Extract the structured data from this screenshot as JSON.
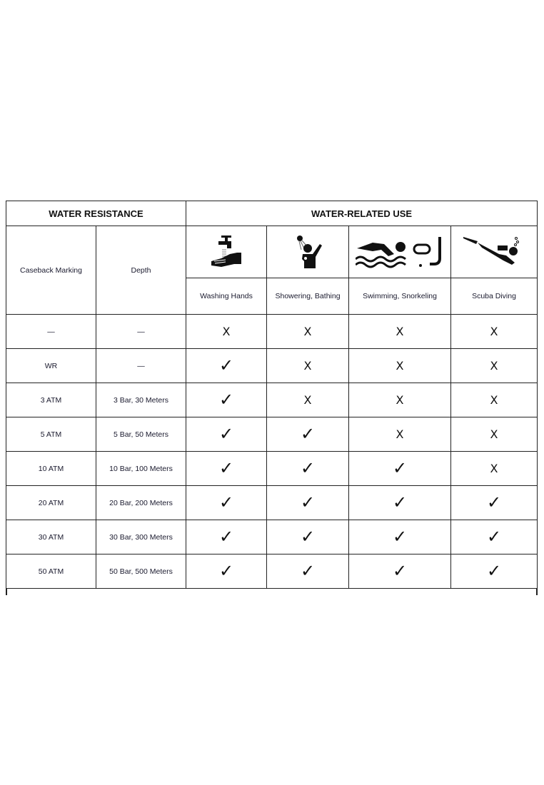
{
  "header": {
    "water_resistance": "WATER RESISTANCE",
    "water_related_use": "WATER-RELATED USE"
  },
  "columns": {
    "marking": "Caseback Marking",
    "depth": "Depth"
  },
  "uses": [
    {
      "label": "Washing Hands",
      "icon": "washing-hands-icon"
    },
    {
      "label": "Showering, Bathing",
      "icon": "shower-icon"
    },
    {
      "label": "Swimming, Snorkeling",
      "icon": "swimming-snorkel-icon"
    },
    {
      "label": "Scuba Diving",
      "icon": "scuba-diving-icon"
    }
  ],
  "symbols": {
    "yes": "✓",
    "no": "X"
  },
  "rows": [
    {
      "marking": "—",
      "depth": "—",
      "allowed": [
        false,
        false,
        false,
        false
      ]
    },
    {
      "marking": "WR",
      "depth": "—",
      "allowed": [
        true,
        false,
        false,
        false
      ]
    },
    {
      "marking": "3 ATM",
      "depth": "3 Bar, 30 Meters",
      "allowed": [
        true,
        false,
        false,
        false
      ]
    },
    {
      "marking": "5 ATM",
      "depth": "5 Bar, 50 Meters",
      "allowed": [
        true,
        true,
        false,
        false
      ]
    },
    {
      "marking": "10 ATM",
      "depth": "10 Bar, 100 Meters",
      "allowed": [
        true,
        true,
        true,
        false
      ]
    },
    {
      "marking": "20 ATM",
      "depth": "20 Bar, 200 Meters",
      "allowed": [
        true,
        true,
        true,
        true
      ]
    },
    {
      "marking": "30 ATM",
      "depth": "30 Bar, 300 Meters",
      "allowed": [
        true,
        true,
        true,
        true
      ]
    },
    {
      "marking": "50 ATM",
      "depth": "50 Bar, 500 Meters",
      "allowed": [
        true,
        true,
        true,
        true
      ]
    }
  ]
}
